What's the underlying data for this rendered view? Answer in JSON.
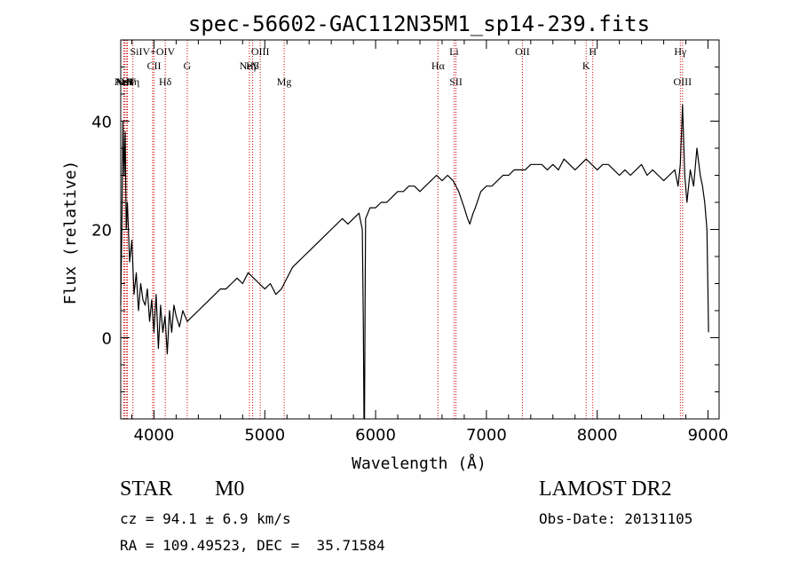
{
  "chart_data": {
    "type": "line",
    "title": "spec-56602-GAC112N35M1_sp14-239.fits",
    "xlabel": "Wavelength (Å)",
    "ylabel": "Flux (relative)",
    "xlim": [
      3700,
      9100
    ],
    "ylim": [
      -15,
      55
    ],
    "xticks": [
      4000,
      5000,
      6000,
      7000,
      8000,
      9000
    ],
    "yticks": [
      0,
      20,
      40
    ],
    "line_color": "#000000",
    "marker_color": "#cc0000",
    "spectrum": [
      [
        3700,
        6
      ],
      [
        3710,
        20
      ],
      [
        3720,
        40
      ],
      [
        3730,
        30
      ],
      [
        3740,
        38
      ],
      [
        3750,
        20
      ],
      [
        3760,
        25
      ],
      [
        3780,
        14
      ],
      [
        3800,
        18
      ],
      [
        3820,
        8
      ],
      [
        3840,
        12
      ],
      [
        3860,
        5
      ],
      [
        3880,
        10
      ],
      [
        3900,
        7
      ],
      [
        3920,
        6
      ],
      [
        3940,
        9
      ],
      [
        3960,
        3
      ],
      [
        3980,
        7
      ],
      [
        4000,
        1
      ],
      [
        4020,
        8
      ],
      [
        4040,
        -2
      ],
      [
        4060,
        6
      ],
      [
        4080,
        1
      ],
      [
        4100,
        4
      ],
      [
        4120,
        -3
      ],
      [
        4140,
        5
      ],
      [
        4160,
        1
      ],
      [
        4180,
        6
      ],
      [
        4200,
        4
      ],
      [
        4230,
        2
      ],
      [
        4260,
        5
      ],
      [
        4300,
        3
      ],
      [
        4350,
        4
      ],
      [
        4400,
        5
      ],
      [
        4450,
        6
      ],
      [
        4500,
        7
      ],
      [
        4550,
        8
      ],
      [
        4600,
        9
      ],
      [
        4650,
        9
      ],
      [
        4700,
        10
      ],
      [
        4750,
        11
      ],
      [
        4800,
        10
      ],
      [
        4850,
        12
      ],
      [
        4900,
        11
      ],
      [
        4950,
        10
      ],
      [
        5000,
        9
      ],
      [
        5050,
        10
      ],
      [
        5100,
        8
      ],
      [
        5150,
        9
      ],
      [
        5200,
        11
      ],
      [
        5250,
        13
      ],
      [
        5300,
        14
      ],
      [
        5350,
        15
      ],
      [
        5400,
        16
      ],
      [
        5450,
        17
      ],
      [
        5500,
        18
      ],
      [
        5550,
        19
      ],
      [
        5600,
        20
      ],
      [
        5650,
        21
      ],
      [
        5700,
        22
      ],
      [
        5750,
        21
      ],
      [
        5800,
        22
      ],
      [
        5850,
        23
      ],
      [
        5880,
        20
      ],
      [
        5890,
        2
      ],
      [
        5895,
        -15
      ],
      [
        5900,
        -15
      ],
      [
        5905,
        5
      ],
      [
        5910,
        22
      ],
      [
        5950,
        24
      ],
      [
        6000,
        24
      ],
      [
        6050,
        25
      ],
      [
        6100,
        25
      ],
      [
        6150,
        26
      ],
      [
        6200,
        27
      ],
      [
        6250,
        27
      ],
      [
        6300,
        28
      ],
      [
        6350,
        28
      ],
      [
        6400,
        27
      ],
      [
        6450,
        28
      ],
      [
        6500,
        29
      ],
      [
        6550,
        30
      ],
      [
        6600,
        29
      ],
      [
        6650,
        30
      ],
      [
        6700,
        29
      ],
      [
        6750,
        27
      ],
      [
        6800,
        24
      ],
      [
        6830,
        22
      ],
      [
        6850,
        21
      ],
      [
        6880,
        23
      ],
      [
        6900,
        24
      ],
      [
        6950,
        27
      ],
      [
        7000,
        28
      ],
      [
        7050,
        28
      ],
      [
        7100,
        29
      ],
      [
        7150,
        30
      ],
      [
        7200,
        30
      ],
      [
        7250,
        31
      ],
      [
        7300,
        31
      ],
      [
        7350,
        31
      ],
      [
        7400,
        32
      ],
      [
        7450,
        32
      ],
      [
        7500,
        32
      ],
      [
        7550,
        31
      ],
      [
        7600,
        32
      ],
      [
        7650,
        31
      ],
      [
        7700,
        33
      ],
      [
        7750,
        32
      ],
      [
        7800,
        31
      ],
      [
        7850,
        32
      ],
      [
        7900,
        33
      ],
      [
        7950,
        32
      ],
      [
        8000,
        31
      ],
      [
        8050,
        32
      ],
      [
        8100,
        32
      ],
      [
        8150,
        31
      ],
      [
        8200,
        30
      ],
      [
        8250,
        31
      ],
      [
        8300,
        30
      ],
      [
        8350,
        31
      ],
      [
        8400,
        32
      ],
      [
        8450,
        30
      ],
      [
        8500,
        31
      ],
      [
        8550,
        30
      ],
      [
        8600,
        29
      ],
      [
        8650,
        30
      ],
      [
        8700,
        31
      ],
      [
        8730,
        28
      ],
      [
        8750,
        32
      ],
      [
        8770,
        43
      ],
      [
        8790,
        30
      ],
      [
        8810,
        25
      ],
      [
        8840,
        31
      ],
      [
        8870,
        28
      ],
      [
        8900,
        35
      ],
      [
        8930,
        30
      ],
      [
        8950,
        28
      ],
      [
        8970,
        25
      ],
      [
        8990,
        20
      ],
      [
        9000,
        8
      ],
      [
        9005,
        1
      ]
    ],
    "line_markers": [
      {
        "x": 3727,
        "label": "ArII",
        "row": 3
      },
      {
        "x": 3735,
        "label": "NeV",
        "row": 3
      },
      {
        "x": 3750,
        "label": "NeV",
        "row": 3
      },
      {
        "x": 3760,
        "label": "Hε",
        "row": 3
      },
      {
        "x": 3810,
        "label": "Hη",
        "row": 3
      },
      {
        "x": 3987,
        "label": "SiIV+OIV",
        "row": 1
      },
      {
        "x": 4000,
        "label": "CII",
        "row": 2
      },
      {
        "x": 4102,
        "label": "Hδ",
        "row": 3
      },
      {
        "x": 4300,
        "label": "G",
        "row": 2
      },
      {
        "x": 4861,
        "label": "NeV",
        "row": 2
      },
      {
        "x": 4959,
        "label": "OIII",
        "row": 1
      },
      {
        "x": 4890,
        "label": "Hβ",
        "row": 2
      },
      {
        "x": 5175,
        "label": "Mg",
        "row": 3
      },
      {
        "x": 6563,
        "label": "Hα",
        "row": 2
      },
      {
        "x": 6708,
        "label": "Li",
        "row": 1
      },
      {
        "x": 6725,
        "label": "SII",
        "row": 3
      },
      {
        "x": 7325,
        "label": "OII",
        "row": 1
      },
      {
        "x": 7900,
        "label": "K",
        "row": 2
      },
      {
        "x": 7960,
        "label": "H",
        "row": 1
      },
      {
        "x": 8750,
        "label": "Hγ",
        "row": 1
      },
      {
        "x": 8770,
        "label": "OIII",
        "row": 3
      }
    ]
  },
  "info": {
    "class": "STAR",
    "subclass": "M0",
    "survey": "LAMOST DR2",
    "cz": "cz = 94.1 ± 6.9 km/s",
    "obs_date": "Obs-Date: 20131105",
    "coords": "RA = 109.49523, DEC =  35.71584"
  }
}
